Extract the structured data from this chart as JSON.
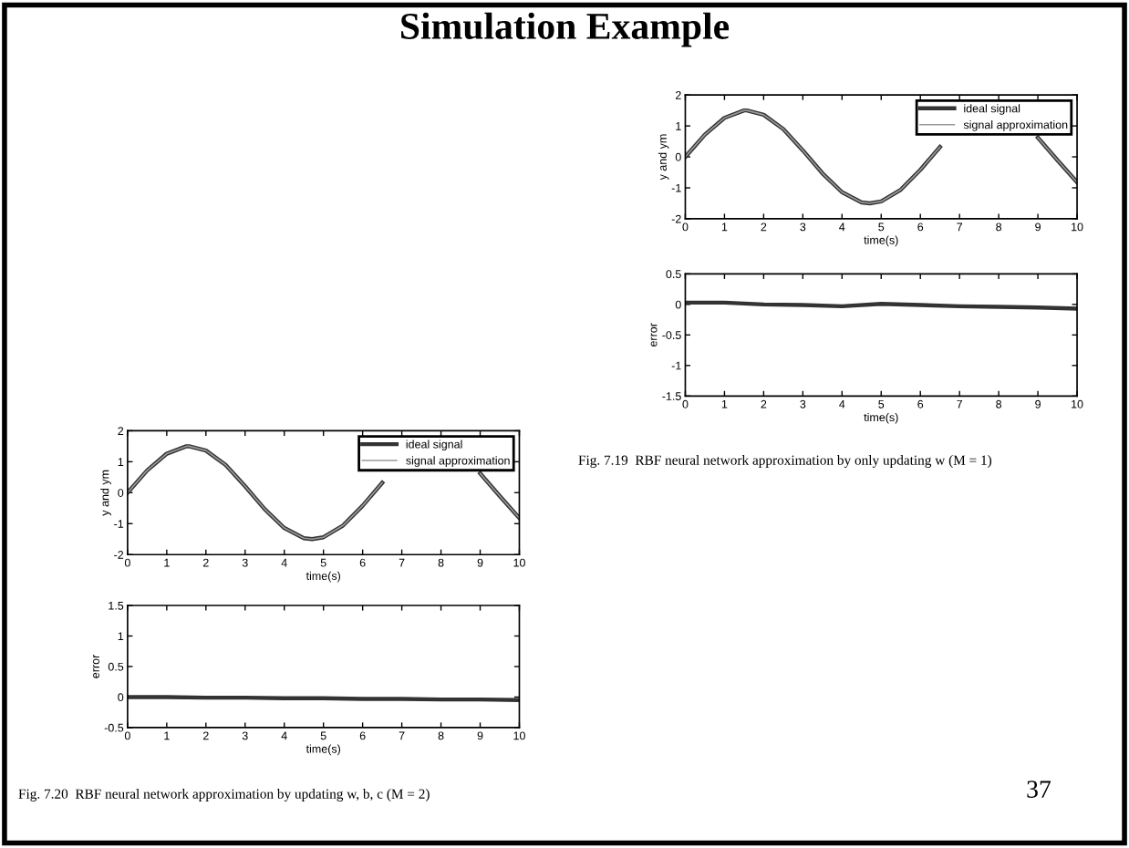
{
  "chart_data": [
    {
      "type": "line",
      "title": "Simulation Example",
      "xlabel": "time(s)",
      "ylabel": "y and ym",
      "x": [
        0,
        0.5,
        1,
        1.5,
        1.57,
        2,
        2.5,
        3,
        3.5,
        4,
        4.5,
        4.71,
        5,
        5.5,
        6,
        6.5,
        7,
        7.5,
        8,
        8.5,
        9,
        9.5,
        10
      ],
      "series": [
        {
          "name": "ideal signal",
          "color": "#333333",
          "values": [
            0,
            0.72,
            1.26,
            1.5,
            1.5,
            1.36,
            0.9,
            0.21,
            -0.53,
            -1.14,
            -1.47,
            -1.5,
            -1.44,
            -1.06,
            -0.42,
            0.32,
            null,
            null,
            null,
            null,
            0.62,
            -0.11,
            -0.82
          ]
        },
        {
          "name": "signal approximation",
          "color": "#9a9a9a",
          "values": [
            0,
            0.72,
            1.26,
            1.5,
            1.5,
            1.36,
            0.9,
            0.21,
            -0.53,
            -1.14,
            -1.47,
            -1.5,
            -1.44,
            -1.06,
            -0.42,
            0.32,
            null,
            null,
            null,
            null,
            0.62,
            -0.11,
            -0.82
          ]
        }
      ],
      "xlim": [
        0,
        10
      ],
      "xticks": [
        0,
        1,
        2,
        3,
        4,
        5,
        6,
        7,
        8,
        9,
        10
      ],
      "ylim": [
        -2,
        2
      ],
      "yticks": [
        -2,
        -1,
        0,
        1,
        2
      ],
      "legend": "top right",
      "grid": false
    },
    {
      "type": "line",
      "xlabel": "time(s)",
      "ylabel": "error",
      "x": [
        0,
        1,
        2,
        3,
        4,
        5,
        6,
        7,
        8,
        9,
        10
      ],
      "series": [
        {
          "color": "#333333",
          "values": [
            0.03,
            0.03,
            0.0,
            -0.01,
            -0.03,
            0.01,
            -0.01,
            -0.03,
            -0.04,
            -0.05,
            -0.07
          ]
        }
      ],
      "xlim": [
        0,
        10
      ],
      "xticks": [
        0,
        1,
        2,
        3,
        4,
        5,
        6,
        7,
        8,
        9,
        10
      ],
      "ylim": [
        -1.5,
        0.5
      ],
      "yticks": [
        -1.5,
        -1,
        -0.5,
        0,
        0.5
      ],
      "grid": false,
      "annotations": [
        "Fig. 7.19  RBF neural network approximation by only updating w (M = 1)"
      ]
    },
    {
      "type": "line",
      "xlabel": "time(s)",
      "ylabel": "y and ym",
      "x": [
        0,
        0.5,
        1,
        1.5,
        1.57,
        2,
        2.5,
        3,
        3.5,
        4,
        4.5,
        4.71,
        5,
        5.5,
        6,
        6.5,
        7,
        7.5,
        8,
        8.5,
        9,
        9.5,
        10
      ],
      "series": [
        {
          "name": "ideal signal",
          "color": "#333333",
          "values": [
            0,
            0.72,
            1.26,
            1.5,
            1.5,
            1.36,
            0.9,
            0.21,
            -0.53,
            -1.14,
            -1.47,
            -1.5,
            -1.44,
            -1.06,
            -0.42,
            0.32,
            null,
            null,
            null,
            null,
            0.62,
            -0.11,
            -0.82
          ]
        },
        {
          "name": "signal approximation",
          "color": "#9a9a9a",
          "values": [
            0,
            0.72,
            1.26,
            1.5,
            1.5,
            1.36,
            0.9,
            0.21,
            -0.53,
            -1.14,
            -1.47,
            -1.5,
            -1.44,
            -1.06,
            -0.42,
            0.32,
            null,
            null,
            null,
            null,
            0.62,
            -0.11,
            -0.82
          ]
        }
      ],
      "xlim": [
        0,
        10
      ],
      "xticks": [
        0,
        1,
        2,
        3,
        4,
        5,
        6,
        7,
        8,
        9,
        10
      ],
      "ylim": [
        -2,
        2
      ],
      "yticks": [
        -2,
        -1,
        0,
        1,
        2
      ],
      "legend": "top right",
      "grid": false
    },
    {
      "type": "line",
      "xlabel": "time(s)",
      "ylabel": "error",
      "x": [
        0,
        1,
        2,
        3,
        4,
        5,
        6,
        7,
        8,
        9,
        10
      ],
      "series": [
        {
          "color": "#333333",
          "values": [
            0,
            0,
            -0.01,
            -0.01,
            -0.02,
            -0.02,
            -0.03,
            -0.03,
            -0.04,
            -0.04,
            -0.05
          ]
        }
      ],
      "xlim": [
        0,
        10
      ],
      "xticks": [
        0,
        1,
        2,
        3,
        4,
        5,
        6,
        7,
        8,
        9,
        10
      ],
      "ylim": [
        -0.5,
        1.5
      ],
      "yticks": [
        -0.5,
        0,
        0.5,
        1,
        1.5
      ],
      "grid": false,
      "annotations": [
        "Fig. 7.20  RBF neural network approximation by updating w, b, c (M = 2)",
        "37"
      ]
    }
  ]
}
